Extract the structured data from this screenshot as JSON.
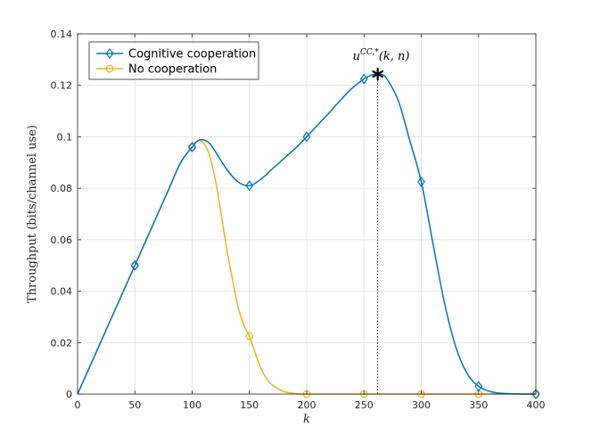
{
  "chart_data": {
    "type": "line",
    "xlabel": "k",
    "ylabel": "Throughput (bits/channel use)",
    "xlim": [
      0,
      400
    ],
    "ylim": [
      0,
      0.14
    ],
    "xticks": [
      0,
      50,
      100,
      150,
      200,
      250,
      300,
      350,
      400
    ],
    "yticks": [
      0,
      0.02,
      0.04,
      0.06,
      0.08,
      0.1,
      0.12,
      0.14
    ],
    "xtick_labels": [
      "0",
      "50",
      "100",
      "150",
      "200",
      "250",
      "300",
      "350",
      "400"
    ],
    "ytick_labels": [
      "0",
      "0.02",
      "0.04",
      "0.06",
      "0.08",
      "0.1",
      "0.12",
      "0.14"
    ],
    "grid": true,
    "legend_position": "top-left",
    "series": [
      {
        "name": "Cognitive cooperation",
        "color": "#0072BD",
        "marker": "diamond",
        "curve_x": [
          0,
          10,
          20,
          30,
          40,
          50,
          60,
          70,
          80,
          90,
          100,
          105,
          110,
          115,
          120,
          130,
          140,
          150,
          160,
          170,
          180,
          190,
          200,
          210,
          220,
          230,
          240,
          250,
          255,
          260,
          265,
          270,
          280,
          290,
          300,
          310,
          320,
          330,
          340,
          350,
          360,
          370,
          380,
          390,
          400
        ],
        "curve_y": [
          0,
          0.01,
          0.02,
          0.03,
          0.04,
          0.05,
          0.06,
          0.07,
          0.08,
          0.09,
          0.096,
          0.0985,
          0.0988,
          0.0975,
          0.0945,
          0.0875,
          0.0825,
          0.081,
          0.0835,
          0.0875,
          0.0915,
          0.0955,
          0.1,
          0.1048,
          0.1095,
          0.1145,
          0.119,
          0.1225,
          0.1237,
          0.1244,
          0.1243,
          0.1225,
          0.114,
          0.0985,
          0.0825,
          0.059,
          0.036,
          0.0185,
          0.008,
          0.003,
          0.001,
          0.0003,
          0.0001,
          0,
          0
        ],
        "marker_x": [
          50,
          100,
          150,
          200,
          250,
          300,
          350,
          400
        ],
        "marker_y": [
          0.05,
          0.096,
          0.081,
          0.1,
          0.1225,
          0.0825,
          0.003,
          0
        ]
      },
      {
        "name": "No cooperation",
        "color": "#EDB120",
        "marker": "circle",
        "curve_x": [
          0,
          10,
          20,
          30,
          40,
          50,
          60,
          70,
          80,
          90,
          100,
          105,
          110,
          115,
          120,
          125,
          130,
          135,
          140,
          145,
          150,
          155,
          160,
          165,
          170,
          180,
          190,
          200,
          250,
          300,
          350,
          400
        ],
        "curve_y": [
          0,
          0.01,
          0.02,
          0.03,
          0.04,
          0.05,
          0.06,
          0.07,
          0.08,
          0.09,
          0.096,
          0.0985,
          0.0975,
          0.093,
          0.084,
          0.071,
          0.057,
          0.045,
          0.034,
          0.027,
          0.0225,
          0.016,
          0.01,
          0.006,
          0.0035,
          0.001,
          0.0002,
          0,
          0,
          0,
          0,
          0
        ],
        "marker_x": [
          50,
          100,
          150,
          200,
          250,
          300,
          350,
          400
        ],
        "marker_y": [
          0.05,
          0.096,
          0.0225,
          0,
          0,
          0,
          0,
          0
        ]
      }
    ],
    "annotation": {
      "text_base": "u",
      "text_sup": "CC,*",
      "text_args": "(k, n)",
      "x": 262,
      "y": 0.1244,
      "marker": "star"
    }
  }
}
